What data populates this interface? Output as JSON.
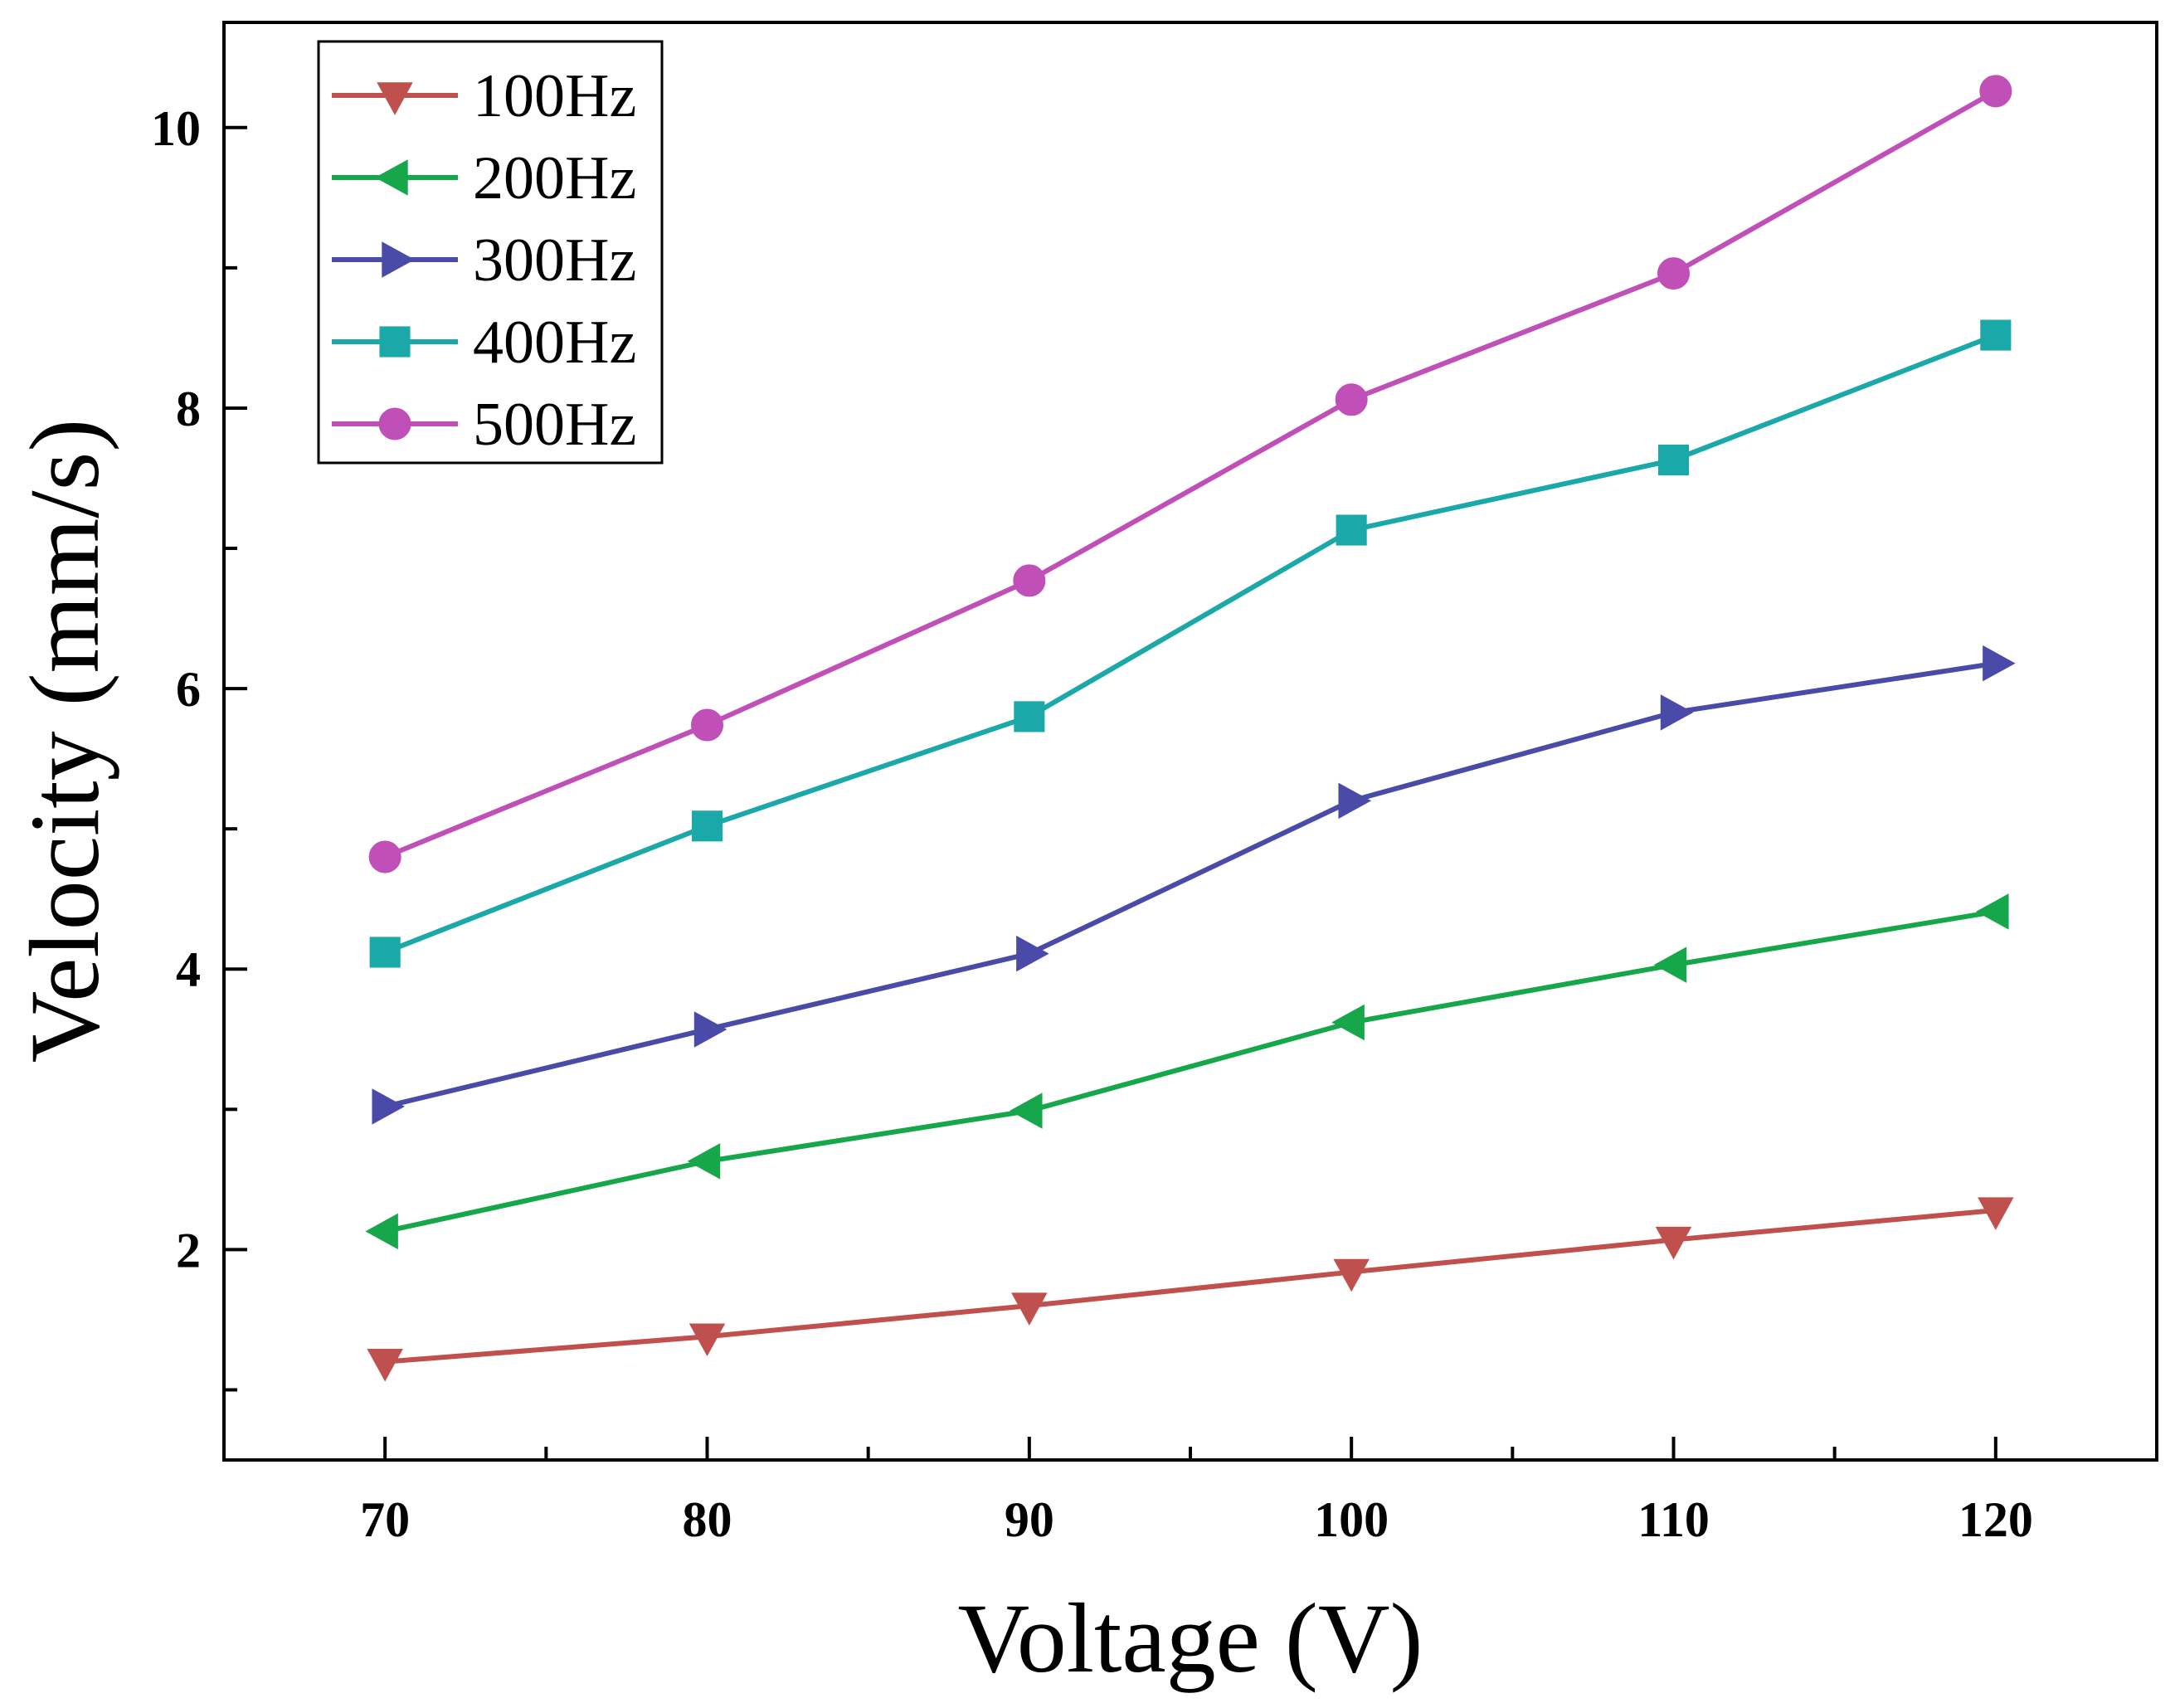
{
  "chart_data": {
    "type": "line",
    "title": "",
    "xlabel": "Voltage (V)",
    "ylabel": "Velocity (mm/s)",
    "x": [
      70,
      80,
      90,
      100,
      110,
      120
    ],
    "xlim": [
      65,
      125
    ],
    "ylim": [
      0.5,
      10.75
    ],
    "x_major_ticks": [
      70,
      80,
      90,
      100,
      110,
      120
    ],
    "x_minor_ticks": [
      75,
      85,
      95,
      105,
      115
    ],
    "y_major_ticks": [
      2,
      4,
      6,
      8,
      10
    ],
    "y_minor_ticks": [
      1,
      3,
      5,
      7,
      9
    ],
    "grid": false,
    "legend_position": "top-left",
    "series": [
      {
        "name": "100Hz",
        "color": "#c0504d",
        "marker": "triangle-down",
        "values": [
          1.2,
          1.38,
          1.6,
          1.84,
          2.07,
          2.28
        ]
      },
      {
        "name": "200Hz",
        "color": "#16a74a",
        "marker": "triangle-left",
        "values": [
          2.13,
          2.63,
          2.99,
          3.62,
          4.03,
          4.41
        ]
      },
      {
        "name": "300Hz",
        "color": "#4a4aa8",
        "marker": "triangle-right",
        "values": [
          3.02,
          3.57,
          4.11,
          5.2,
          5.83,
          6.18
        ]
      },
      {
        "name": "400Hz",
        "color": "#1aa8a8",
        "marker": "square",
        "values": [
          4.12,
          5.02,
          5.8,
          7.13,
          7.63,
          8.52
        ]
      },
      {
        "name": "500Hz",
        "color": "#c04fb8",
        "marker": "circle",
        "values": [
          4.8,
          5.74,
          6.77,
          8.06,
          8.96,
          10.26
        ]
      }
    ]
  }
}
